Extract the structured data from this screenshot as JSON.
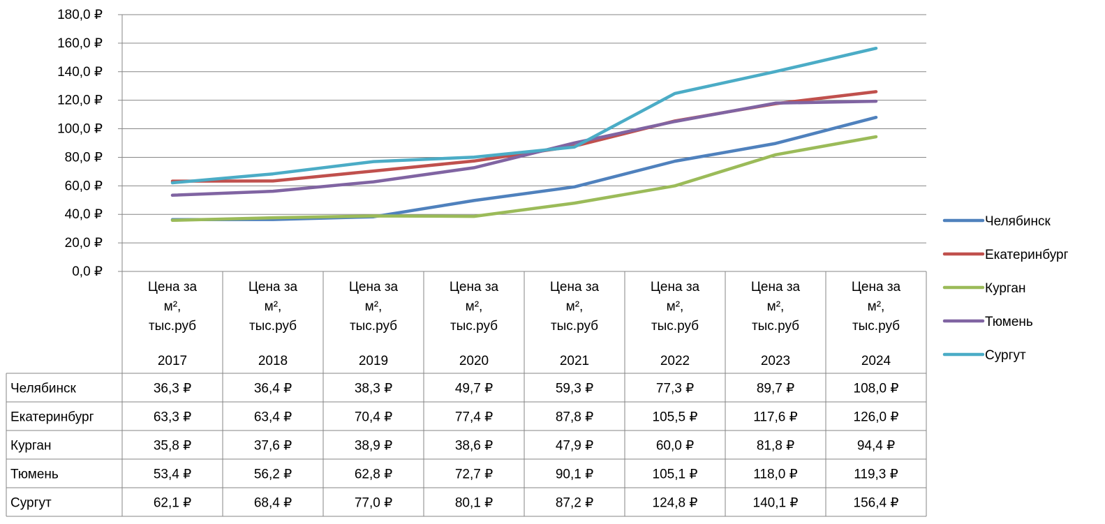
{
  "chart_data": {
    "type": "line",
    "title": "",
    "xlabel": "",
    "ylabel": "",
    "ylim": [
      0,
      180
    ],
    "y_ticks": [
      0,
      20,
      40,
      60,
      80,
      100,
      120,
      140,
      160,
      180
    ],
    "y_tick_labels": [
      "0,0 ₽",
      "20,0 ₽",
      "40,0 ₽",
      "60,0 ₽",
      "80,0 ₽",
      "100,0 ₽",
      "120,0 ₽",
      "140,0 ₽",
      "160,0 ₽",
      "180,0 ₽"
    ],
    "category_label_lines": [
      "Цена за",
      "м²,",
      "тыс.руб"
    ],
    "categories": [
      "2017",
      "2018",
      "2019",
      "2020",
      "2021",
      "2022",
      "2023",
      "2024"
    ],
    "grid": true,
    "legend_position": "right",
    "data_table": true,
    "series": [
      {
        "name": "Челябинск",
        "color": "#4F81BD",
        "values": [
          36.3,
          36.4,
          38.3,
          49.7,
          59.3,
          77.3,
          89.7,
          108.0
        ],
        "labels": [
          "36,3 ₽",
          "36,4 ₽",
          "38,3 ₽",
          "49,7 ₽",
          "59,3 ₽",
          "77,3 ₽",
          "89,7 ₽",
          "108,0 ₽"
        ]
      },
      {
        "name": "Екатеринбург",
        "color": "#C0504D",
        "values": [
          63.3,
          63.4,
          70.4,
          77.4,
          87.8,
          105.5,
          117.6,
          126.0
        ],
        "labels": [
          "63,3 ₽",
          "63,4 ₽",
          "70,4 ₽",
          "77,4 ₽",
          "87,8 ₽",
          "105,5 ₽",
          "117,6 ₽",
          "126,0 ₽"
        ]
      },
      {
        "name": "Курган",
        "color": "#9BBB59",
        "values": [
          35.8,
          37.6,
          38.9,
          38.6,
          47.9,
          60.0,
          81.8,
          94.4
        ],
        "labels": [
          "35,8 ₽",
          "37,6 ₽",
          "38,9 ₽",
          "38,6 ₽",
          "47,9 ₽",
          "60,0 ₽",
          "81,8 ₽",
          "94,4 ₽"
        ]
      },
      {
        "name": "Тюмень",
        "color": "#8064A2",
        "values": [
          53.4,
          56.2,
          62.8,
          72.7,
          90.1,
          105.1,
          118.0,
          119.3
        ],
        "labels": [
          "53,4 ₽",
          "56,2 ₽",
          "62,8 ₽",
          "72,7 ₽",
          "90,1 ₽",
          "105,1 ₽",
          "118,0 ₽",
          "119,3 ₽"
        ]
      },
      {
        "name": "Сургут",
        "color": "#4BACC6",
        "values": [
          62.1,
          68.4,
          77.0,
          80.1,
          87.2,
          124.8,
          140.1,
          156.4
        ],
        "labels": [
          "62,1 ₽",
          "68,4 ₽",
          "77,0 ₽",
          "80,1 ₽",
          "87,2 ₽",
          "124,8 ₽",
          "140,1 ₽",
          "156,4 ₽"
        ]
      }
    ]
  }
}
